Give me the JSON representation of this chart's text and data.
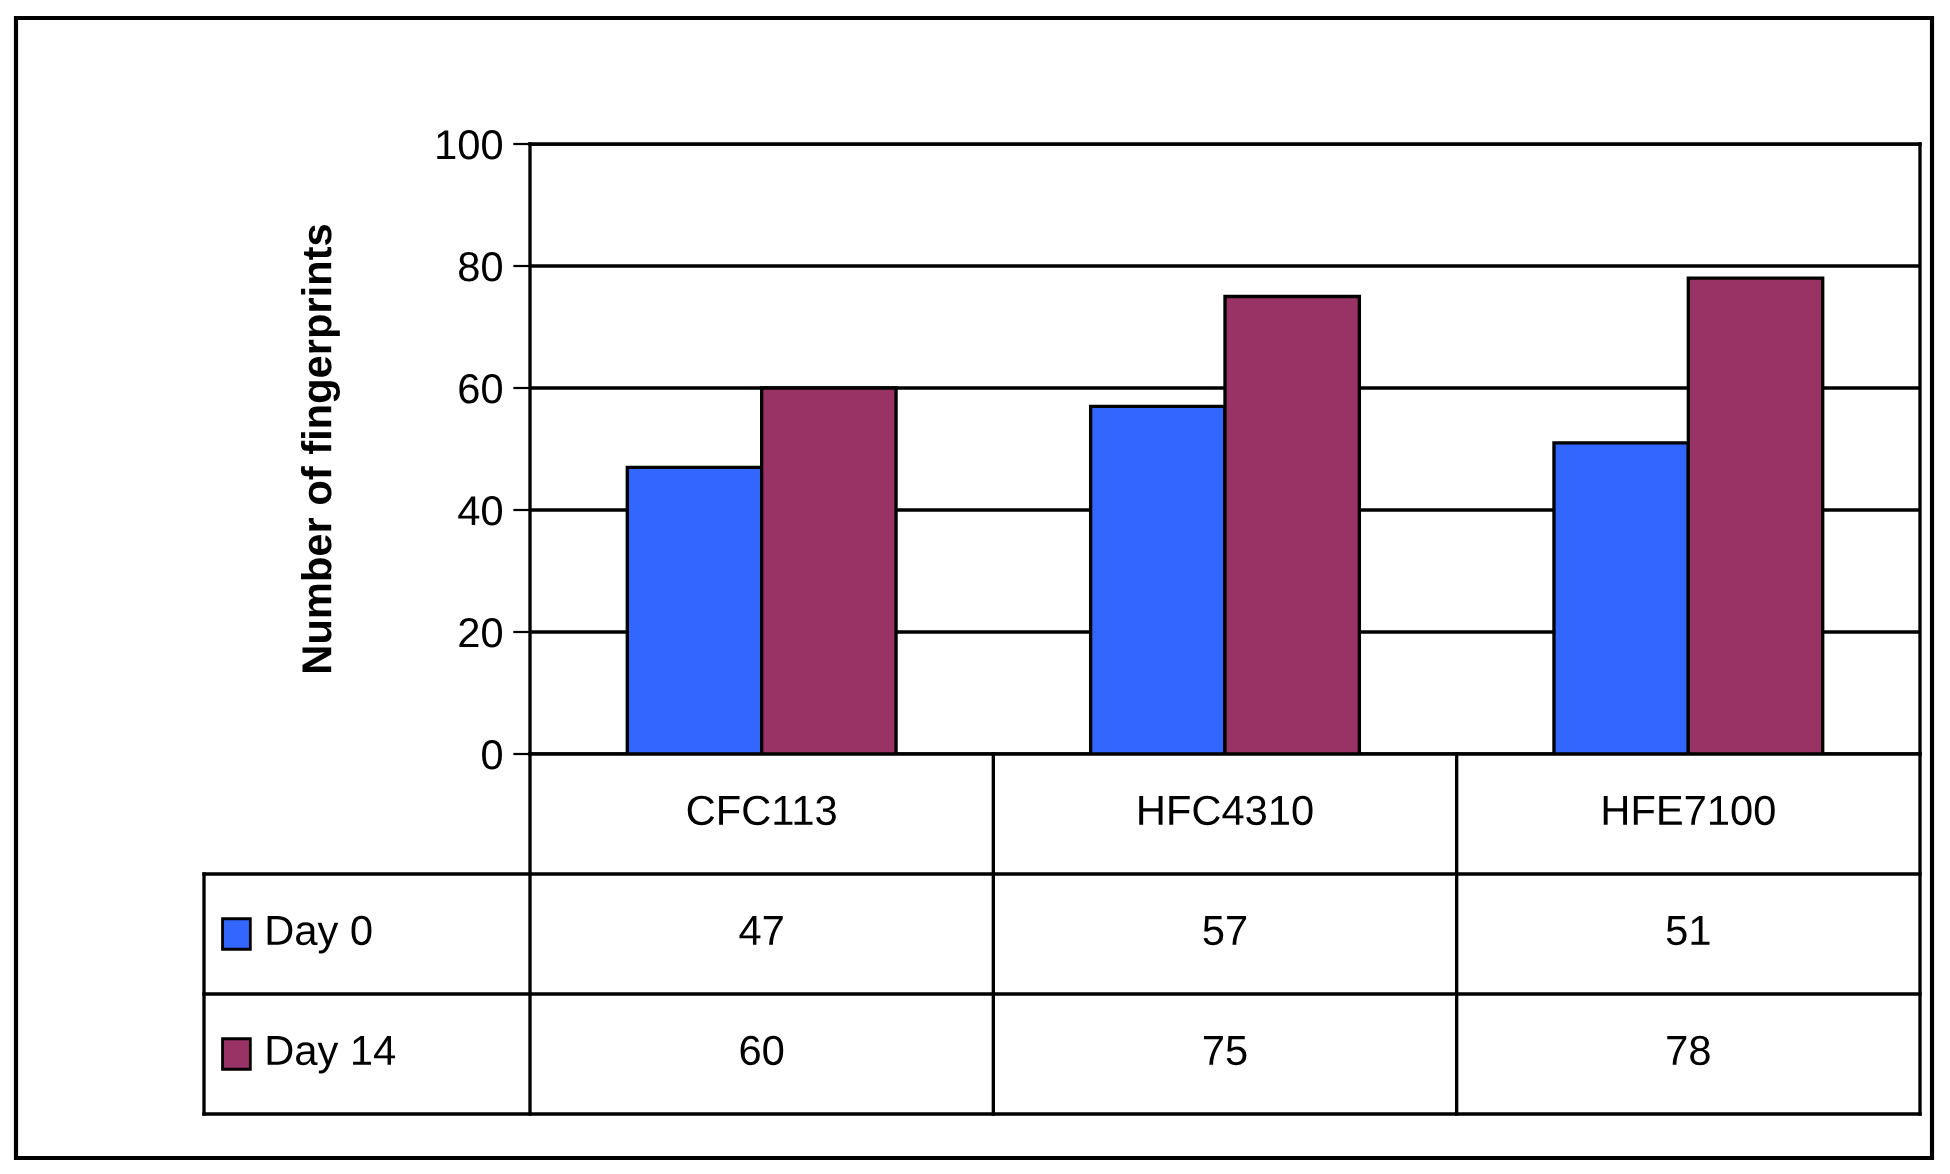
{
  "chart_data": {
    "type": "bar",
    "ylabel": "Number of fingerprints",
    "categories": [
      "CFC113",
      "HFC4310",
      "HFE7100"
    ],
    "series": [
      {
        "name": "Day 0",
        "color": "#3366ff",
        "values": [
          47,
          57,
          51
        ]
      },
      {
        "name": "Day 14",
        "color": "#993366",
        "values": [
          60,
          75,
          78
        ]
      }
    ],
    "ylim": [
      0,
      100
    ],
    "yticks": [
      0,
      20,
      40,
      60,
      80,
      100
    ],
    "grid": "y",
    "legend": "bottom",
    "data_labels": true
  }
}
